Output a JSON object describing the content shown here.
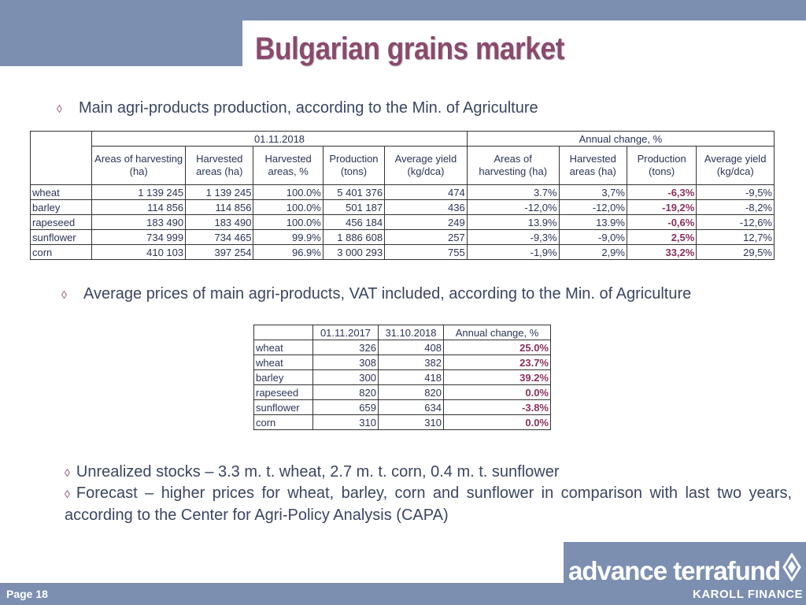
{
  "slide": {
    "title": "Bulgarian grains market",
    "bullets": [
      "Main agri-products production, according to the Min. of Agriculture",
      "Average prices of main agri-products, VAT included, according to the Min. of Agriculture"
    ],
    "notes": [
      "Unrealized stocks – 3.3 m. t. wheat, 2.7 m. t. corn, 0.4 m. t. sunflower",
      "Forecast – higher prices for wheat, barley, corn and sunflower in comparison with last two years, according to the Center for Agri-Policy Analysis (CAPA)"
    ],
    "page_label": "Page 18"
  },
  "table1": {
    "group_headers": [
      "01.11.2018",
      "Annual change, %"
    ],
    "sub_headers": [
      "Areas of harvesting (ha)",
      "Harvested areas (ha)",
      "Harvested areas, %",
      "Production (tons)",
      "Average yield (kg/dca)",
      "Areas of harvesting (ha)",
      "Harvested areas (ha)",
      "Production (tons)",
      "Average yield (kg/dca)"
    ],
    "rows": [
      [
        "wheat",
        "1 139 245",
        "1 139 245",
        "100.0%",
        "5 401 376",
        "474",
        "3.7%",
        "3,7%",
        "-6,3%",
        "-9,5%"
      ],
      [
        "barley",
        "114 856",
        "114 856",
        "100.0%",
        "501 187",
        "436",
        "-12,0%",
        "-12,0%",
        "-19,2%",
        "-8,2%"
      ],
      [
        "rapeseed",
        "183 490",
        "183 490",
        "100.0%",
        "456 184",
        "249",
        "13.9%",
        "13.9%",
        "-0,6%",
        "-12,6%"
      ],
      [
        "sunflower",
        "734 999",
        "734 465",
        "99.9%",
        "1 886 608",
        "257",
        "-9,3%",
        "-9,0%",
        "2,5%",
        "12,7%"
      ],
      [
        "corn",
        "410 103",
        "397 254",
        "96.9%",
        "3 000 293",
        "755",
        "-1,9%",
        "2,9%",
        "33,2%",
        "29,5%"
      ]
    ]
  },
  "table2": {
    "headers": [
      "",
      "01.11.2017",
      "31.10.2018",
      "Annual change, %"
    ],
    "rows": [
      [
        "wheat",
        "326",
        "408",
        "25.0%"
      ],
      [
        "wheat",
        "308",
        "382",
        "23.7%"
      ],
      [
        "barley",
        "300",
        "418",
        "39.2%"
      ],
      [
        "rapeseed",
        "820",
        "820",
        "0.0%"
      ],
      [
        "sunflower",
        "659",
        "634",
        "-3.8%"
      ],
      [
        "corn",
        "310",
        "310",
        "0.0%"
      ]
    ]
  },
  "logo": {
    "name": "advance terrafund",
    "sub": "KAROLL FINANCE"
  },
  "colors": {
    "band": "#7c8fb0",
    "title": "#8a4a6e",
    "accent_values": "#8a3060"
  }
}
